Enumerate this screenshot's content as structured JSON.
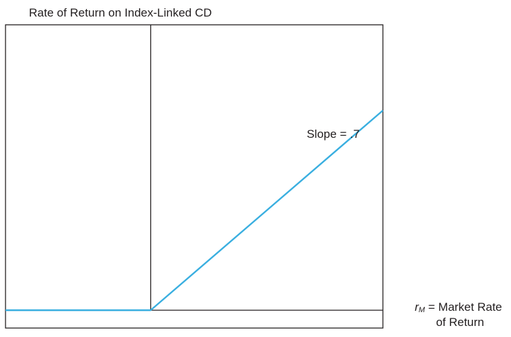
{
  "chart_data": {
    "type": "line",
    "title": "Rate of Return on Index-Linked CD",
    "xlabel": {
      "symbol": "r",
      "subscript": "M",
      "text": " = Market Rate",
      "line2": "of Return"
    },
    "ylabel": "",
    "xlim": [
      -1,
      1.6
    ],
    "ylim": [
      -0.1,
      1.6
    ],
    "grid": false,
    "series": [
      {
        "x": [
          -1,
          0,
          1.6
        ],
        "y": [
          0,
          0,
          1.12
        ],
        "color": "#3aafe0"
      }
    ],
    "annotations": [
      {
        "text": "Slope = .7",
        "x": 1.45,
        "y": 0.95
      }
    ]
  }
}
